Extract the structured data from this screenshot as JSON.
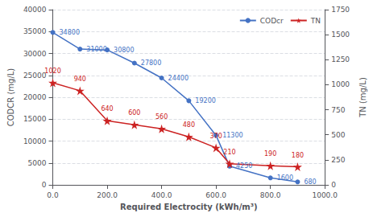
{
  "chart_data": {
    "type": "line",
    "xlabel": "Required Electrocity (kWh/m³)",
    "ylabel": "CODCR (mg/L)",
    "y2label": "TN (mg/L)",
    "x": [
      0,
      100,
      200,
      300,
      400,
      500,
      600,
      650,
      800,
      900
    ],
    "series": [
      {
        "name": "CODcr",
        "color": "#4472C4",
        "marker": "circle",
        "values": [
          34800,
          31000,
          30800,
          27800,
          24400,
          19200,
          11300,
          4250,
          1600,
          680
        ]
      },
      {
        "name": "TN",
        "color": "#CC2222",
        "marker": "star",
        "axis": "y2",
        "values": [
          1020,
          940,
          640,
          600,
          560,
          480,
          370,
          210,
          190,
          180
        ]
      }
    ],
    "xlim": [
      0,
      1000
    ],
    "xticks": [
      {
        "value": 0,
        "label": "0.0"
      },
      {
        "value": 200,
        "label": "200.0"
      },
      {
        "value": 400,
        "label": "400.0"
      },
      {
        "value": 600,
        "label": "600.0"
      },
      {
        "value": 800,
        "label": "800.0"
      },
      {
        "value": 1000,
        "label": "1000.0"
      }
    ],
    "ylim": [
      0,
      40000
    ],
    "yticks": [
      0,
      5000,
      10000,
      15000,
      20000,
      25000,
      30000,
      35000,
      40000
    ],
    "y2lim": [
      0,
      1750
    ],
    "y2ticks": [
      0,
      250,
      500,
      750,
      1000,
      1250,
      1500,
      1750
    ],
    "grid": true,
    "legend": "upper right",
    "data_labels": true
  }
}
